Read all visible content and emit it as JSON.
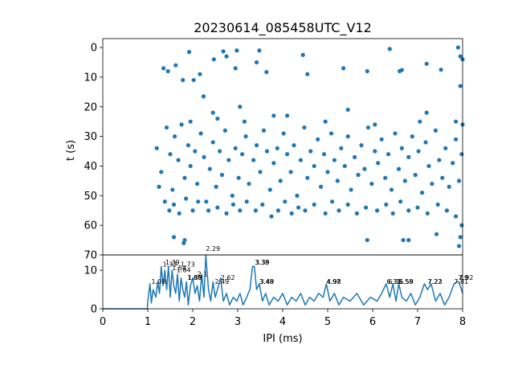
{
  "chart_data": [
    {
      "type": "scatter",
      "title": "20230614_085458UTC_V12",
      "xlabel": "",
      "ylabel": "t (s)",
      "xlim": [
        0,
        8
      ],
      "ylim": [
        70,
        -3
      ],
      "y_inverted": true,
      "yticks": [
        "0",
        "10",
        "20",
        "30",
        "40",
        "50",
        "60",
        "70"
      ],
      "color": "#1f77b4",
      "points": [
        [
          1.35,
          7
        ],
        [
          1.45,
          8
        ],
        [
          1.62,
          6
        ],
        [
          1.78,
          11
        ],
        [
          1.92,
          1.5
        ],
        [
          2.02,
          11
        ],
        [
          2.16,
          9
        ],
        [
          2.24,
          16.5
        ],
        [
          2.47,
          4
        ],
        [
          2.68,
          1.3
        ],
        [
          2.75,
          3
        ],
        [
          2.95,
          7
        ],
        [
          2.98,
          1
        ],
        [
          3.42,
          5
        ],
        [
          3.48,
          1
        ],
        [
          3.64,
          8.3
        ],
        [
          4.45,
          2.5
        ],
        [
          4.55,
          9
        ],
        [
          5.35,
          7
        ],
        [
          5.88,
          8
        ],
        [
          6.38,
          0.5
        ],
        [
          6.6,
          8
        ],
        [
          6.65,
          7.6
        ],
        [
          7.2,
          5.5
        ],
        [
          7.52,
          7.5
        ],
        [
          7.9,
          0
        ],
        [
          7.95,
          3
        ],
        [
          8.0,
          4
        ],
        [
          7.95,
          13
        ],
        [
          1.2,
          34
        ],
        [
          1.3,
          42
        ],
        [
          1.42,
          27
        ],
        [
          1.5,
          36
        ],
        [
          1.55,
          48
        ],
        [
          1.6,
          30
        ],
        [
          1.68,
          38
        ],
        [
          1.75,
          26
        ],
        [
          1.82,
          44
        ],
        [
          1.9,
          33
        ],
        [
          1.95,
          40
        ],
        [
          2.05,
          35
        ],
        [
          2.1,
          46
        ],
        [
          2.18,
          29
        ],
        [
          2.25,
          37
        ],
        [
          2.3,
          52
        ],
        [
          2.38,
          41
        ],
        [
          2.45,
          32
        ],
        [
          2.52,
          47
        ],
        [
          2.6,
          35
        ],
        [
          2.65,
          43
        ],
        [
          2.72,
          28
        ],
        [
          2.8,
          38
        ],
        [
          2.88,
          50
        ],
        [
          2.95,
          34
        ],
        [
          3.02,
          44
        ],
        [
          3.1,
          36
        ],
        [
          3.18,
          30
        ],
        [
          3.25,
          46
        ],
        [
          3.35,
          38
        ],
        [
          3.42,
          33
        ],
        [
          3.5,
          42
        ],
        [
          3.58,
          28
        ],
        [
          3.65,
          35
        ],
        [
          3.72,
          48
        ],
        [
          3.8,
          39
        ],
        [
          3.88,
          34
        ],
        [
          3.95,
          45
        ],
        [
          4.02,
          29
        ],
        [
          4.1,
          36
        ],
        [
          4.18,
          42
        ],
        [
          4.25,
          33
        ],
        [
          4.32,
          50
        ],
        [
          4.4,
          38
        ],
        [
          4.48,
          27
        ],
        [
          4.55,
          44
        ],
        [
          4.62,
          35
        ],
        [
          4.7,
          40
        ],
        [
          4.78,
          31
        ],
        [
          4.85,
          47
        ],
        [
          4.92,
          36
        ],
        [
          5.0,
          42
        ],
        [
          5.08,
          29
        ],
        [
          5.15,
          38
        ],
        [
          5.22,
          45
        ],
        [
          5.3,
          34
        ],
        [
          5.38,
          40
        ],
        [
          5.45,
          30
        ],
        [
          5.52,
          48
        ],
        [
          5.6,
          37
        ],
        [
          5.68,
          43
        ],
        [
          5.75,
          33
        ],
        [
          5.82,
          41
        ],
        [
          5.9,
          27
        ],
        [
          5.98,
          46
        ],
        [
          6.05,
          35
        ],
        [
          6.12,
          39
        ],
        [
          6.2,
          31
        ],
        [
          6.28,
          44
        ],
        [
          6.35,
          36
        ],
        [
          6.42,
          48
        ],
        [
          6.5,
          29
        ],
        [
          6.58,
          41
        ],
        [
          6.65,
          34
        ],
        [
          6.72,
          45
        ],
        [
          6.8,
          37
        ],
        [
          6.88,
          30
        ],
        [
          6.95,
          43
        ],
        [
          7.02,
          35
        ],
        [
          7.1,
          49
        ],
        [
          7.18,
          32
        ],
        [
          7.25,
          40
        ],
        [
          7.32,
          46
        ],
        [
          7.4,
          28
        ],
        [
          7.48,
          38
        ],
        [
          7.55,
          44
        ],
        [
          7.62,
          34
        ],
        [
          7.7,
          47
        ],
        [
          7.78,
          39
        ],
        [
          7.85,
          31
        ],
        [
          7.92,
          45
        ],
        [
          7.98,
          36
        ],
        [
          1.25,
          47
        ],
        [
          1.38,
          52
        ],
        [
          1.48,
          55
        ],
        [
          1.58,
          53
        ],
        [
          1.7,
          56
        ],
        [
          1.85,
          51
        ],
        [
          2.0,
          55
        ],
        [
          2.12,
          52
        ],
        [
          2.35,
          55
        ],
        [
          2.55,
          54
        ],
        [
          2.75,
          56
        ],
        [
          2.9,
          53
        ],
        [
          3.05,
          55
        ],
        [
          3.2,
          52
        ],
        [
          3.4,
          55
        ],
        [
          3.55,
          53
        ],
        [
          3.75,
          57
        ],
        [
          3.9,
          55
        ],
        [
          4.05,
          52
        ],
        [
          4.2,
          56
        ],
        [
          4.35,
          54
        ],
        [
          4.5,
          55
        ],
        [
          4.7,
          53
        ],
        [
          4.95,
          56
        ],
        [
          5.1,
          52
        ],
        [
          5.25,
          55
        ],
        [
          5.45,
          53
        ],
        [
          5.65,
          56
        ],
        [
          5.85,
          54
        ],
        [
          6.1,
          55
        ],
        [
          6.3,
          53
        ],
        [
          6.45,
          56
        ],
        [
          6.62,
          52
        ],
        [
          6.8,
          55
        ],
        [
          7.0,
          54
        ],
        [
          7.22,
          56
        ],
        [
          7.45,
          53
        ],
        [
          7.65,
          55
        ],
        [
          7.85,
          57
        ],
        [
          7.98,
          60
        ],
        [
          1.58,
          64
        ],
        [
          1.8,
          66
        ],
        [
          1.82,
          65
        ],
        [
          5.88,
          65
        ],
        [
          6.68,
          65
        ],
        [
          6.8,
          65
        ],
        [
          7.42,
          63
        ],
        [
          7.92,
          67
        ],
        [
          7.95,
          64
        ],
        [
          2.45,
          22
        ],
        [
          2.55,
          24
        ],
        [
          3.05,
          20
        ],
        [
          3.15,
          25
        ],
        [
          4.1,
          23
        ],
        [
          4.95,
          25
        ],
        [
          5.45,
          21
        ],
        [
          6.05,
          26
        ],
        [
          7.05,
          25
        ],
        [
          7.2,
          22
        ],
        [
          7.85,
          25
        ],
        [
          8.0,
          26
        ],
        [
          1.95,
          25
        ],
        [
          3.8,
          23
        ]
      ]
    },
    {
      "type": "line",
      "xlabel": "IPI (ms)",
      "ylabel": "",
      "xlim": [
        0,
        8
      ],
      "ylim": [
        0,
        14
      ],
      "xticks": [
        "0",
        "1",
        "2",
        "3",
        "4",
        "5",
        "6",
        "7",
        "8"
      ],
      "yticks": [
        "0",
        "10"
      ],
      "color": "#1f77b4",
      "x": [
        0,
        0.5,
        0.99,
        1.0,
        1.05,
        1.08,
        1.12,
        1.18,
        1.22,
        1.26,
        1.3,
        1.34,
        1.38,
        1.42,
        1.46,
        1.5,
        1.54,
        1.58,
        1.62,
        1.66,
        1.7,
        1.74,
        1.78,
        1.82,
        1.86,
        1.9,
        1.95,
        2.0,
        2.05,
        2.1,
        2.15,
        2.2,
        2.25,
        2.29,
        2.35,
        2.4,
        2.45,
        2.5,
        2.55,
        2.62,
        2.68,
        2.75,
        2.82,
        2.9,
        2.98,
        3.05,
        3.12,
        3.2,
        3.27,
        3.33,
        3.37,
        3.42,
        3.48,
        3.55,
        3.62,
        3.7,
        3.8,
        3.9,
        4.0,
        4.1,
        4.2,
        4.3,
        4.4,
        4.5,
        4.6,
        4.7,
        4.8,
        4.9,
        4.97,
        5.05,
        5.15,
        5.25,
        5.35,
        5.5,
        5.65,
        5.8,
        5.95,
        6.1,
        6.2,
        6.3,
        6.38,
        6.45,
        6.52,
        6.58,
        6.65,
        6.75,
        6.85,
        6.95,
        7.05,
        7.15,
        7.22,
        7.3,
        7.4,
        7.5,
        7.6,
        7.7,
        7.81,
        7.88,
        7.92,
        8.0
      ],
      "y": [
        0,
        0,
        0,
        2,
        6.5,
        1.5,
        5,
        3,
        7,
        4,
        11,
        6,
        10,
        5,
        11,
        3,
        10,
        6,
        4,
        9,
        2,
        8,
        5,
        3,
        7,
        1,
        6,
        8,
        4,
        6,
        2,
        9,
        3,
        14,
        5,
        2,
        7,
        3,
        5,
        8,
        2,
        4,
        1,
        3,
        2,
        4,
        1,
        3,
        5,
        11,
        11,
        5,
        6.5,
        2,
        4,
        1,
        3,
        2,
        4,
        1,
        3,
        2,
        4,
        1,
        3,
        2,
        4,
        3,
        6.5,
        2,
        4,
        1,
        3,
        2,
        4,
        1,
        3,
        2,
        4,
        6.5,
        3,
        6.5,
        2,
        6.5,
        3,
        2,
        4,
        1,
        3,
        6.5,
        5,
        6.5,
        2,
        4,
        1,
        3,
        6.5,
        7,
        7,
        4
      ],
      "peak_labels": [
        {
          "text": "1.08",
          "x": 1.08,
          "y": 6.5
        },
        {
          "text": "1.39",
          "x": 1.39,
          "y": 11.5
        },
        {
          "text": "1.33",
          "x": 1.33,
          "y": 11
        },
        {
          "text": "1.54",
          "x": 1.54,
          "y": 10
        },
        {
          "text": "1.64",
          "x": 1.64,
          "y": 9.5
        },
        {
          "text": "1.73",
          "x": 1.73,
          "y": 11
        },
        {
          "text": "1.89",
          "x": 1.89,
          "y": 7.5
        },
        {
          "text": "1.88",
          "x": 1.88,
          "y": 7.5
        },
        {
          "text": "2.1",
          "x": 2.1,
          "y": 8.5
        },
        {
          "text": "2.29",
          "x": 2.29,
          "y": 15
        },
        {
          "text": "2.49",
          "x": 2.49,
          "y": 6.5
        },
        {
          "text": "2.62",
          "x": 2.62,
          "y": 7.5
        },
        {
          "text": "3.39",
          "x": 3.39,
          "y": 11.5
        },
        {
          "text": "3.38",
          "x": 3.38,
          "y": 11.5
        },
        {
          "text": "3.48",
          "x": 3.48,
          "y": 6.5
        },
        {
          "text": "3.49",
          "x": 3.49,
          "y": 6.5
        },
        {
          "text": "4.97",
          "x": 4.97,
          "y": 6.5
        },
        {
          "text": "4.98",
          "x": 4.98,
          "y": 6.5
        },
        {
          "text": "6.31",
          "x": 6.31,
          "y": 6.5
        },
        {
          "text": "6.35",
          "x": 6.35,
          "y": 6.5
        },
        {
          "text": "6.58",
          "x": 6.58,
          "y": 6.5
        },
        {
          "text": "6.59",
          "x": 6.59,
          "y": 6.5
        },
        {
          "text": "7.22",
          "x": 7.22,
          "y": 6.5
        },
        {
          "text": "7.23",
          "x": 7.23,
          "y": 6.5
        },
        {
          "text": "7.81",
          "x": 7.81,
          "y": 6.5
        },
        {
          "text": "7.92",
          "x": 7.92,
          "y": 7.5
        },
        {
          "text": "7.9",
          "x": 7.9,
          "y": 7.5
        }
      ]
    }
  ]
}
